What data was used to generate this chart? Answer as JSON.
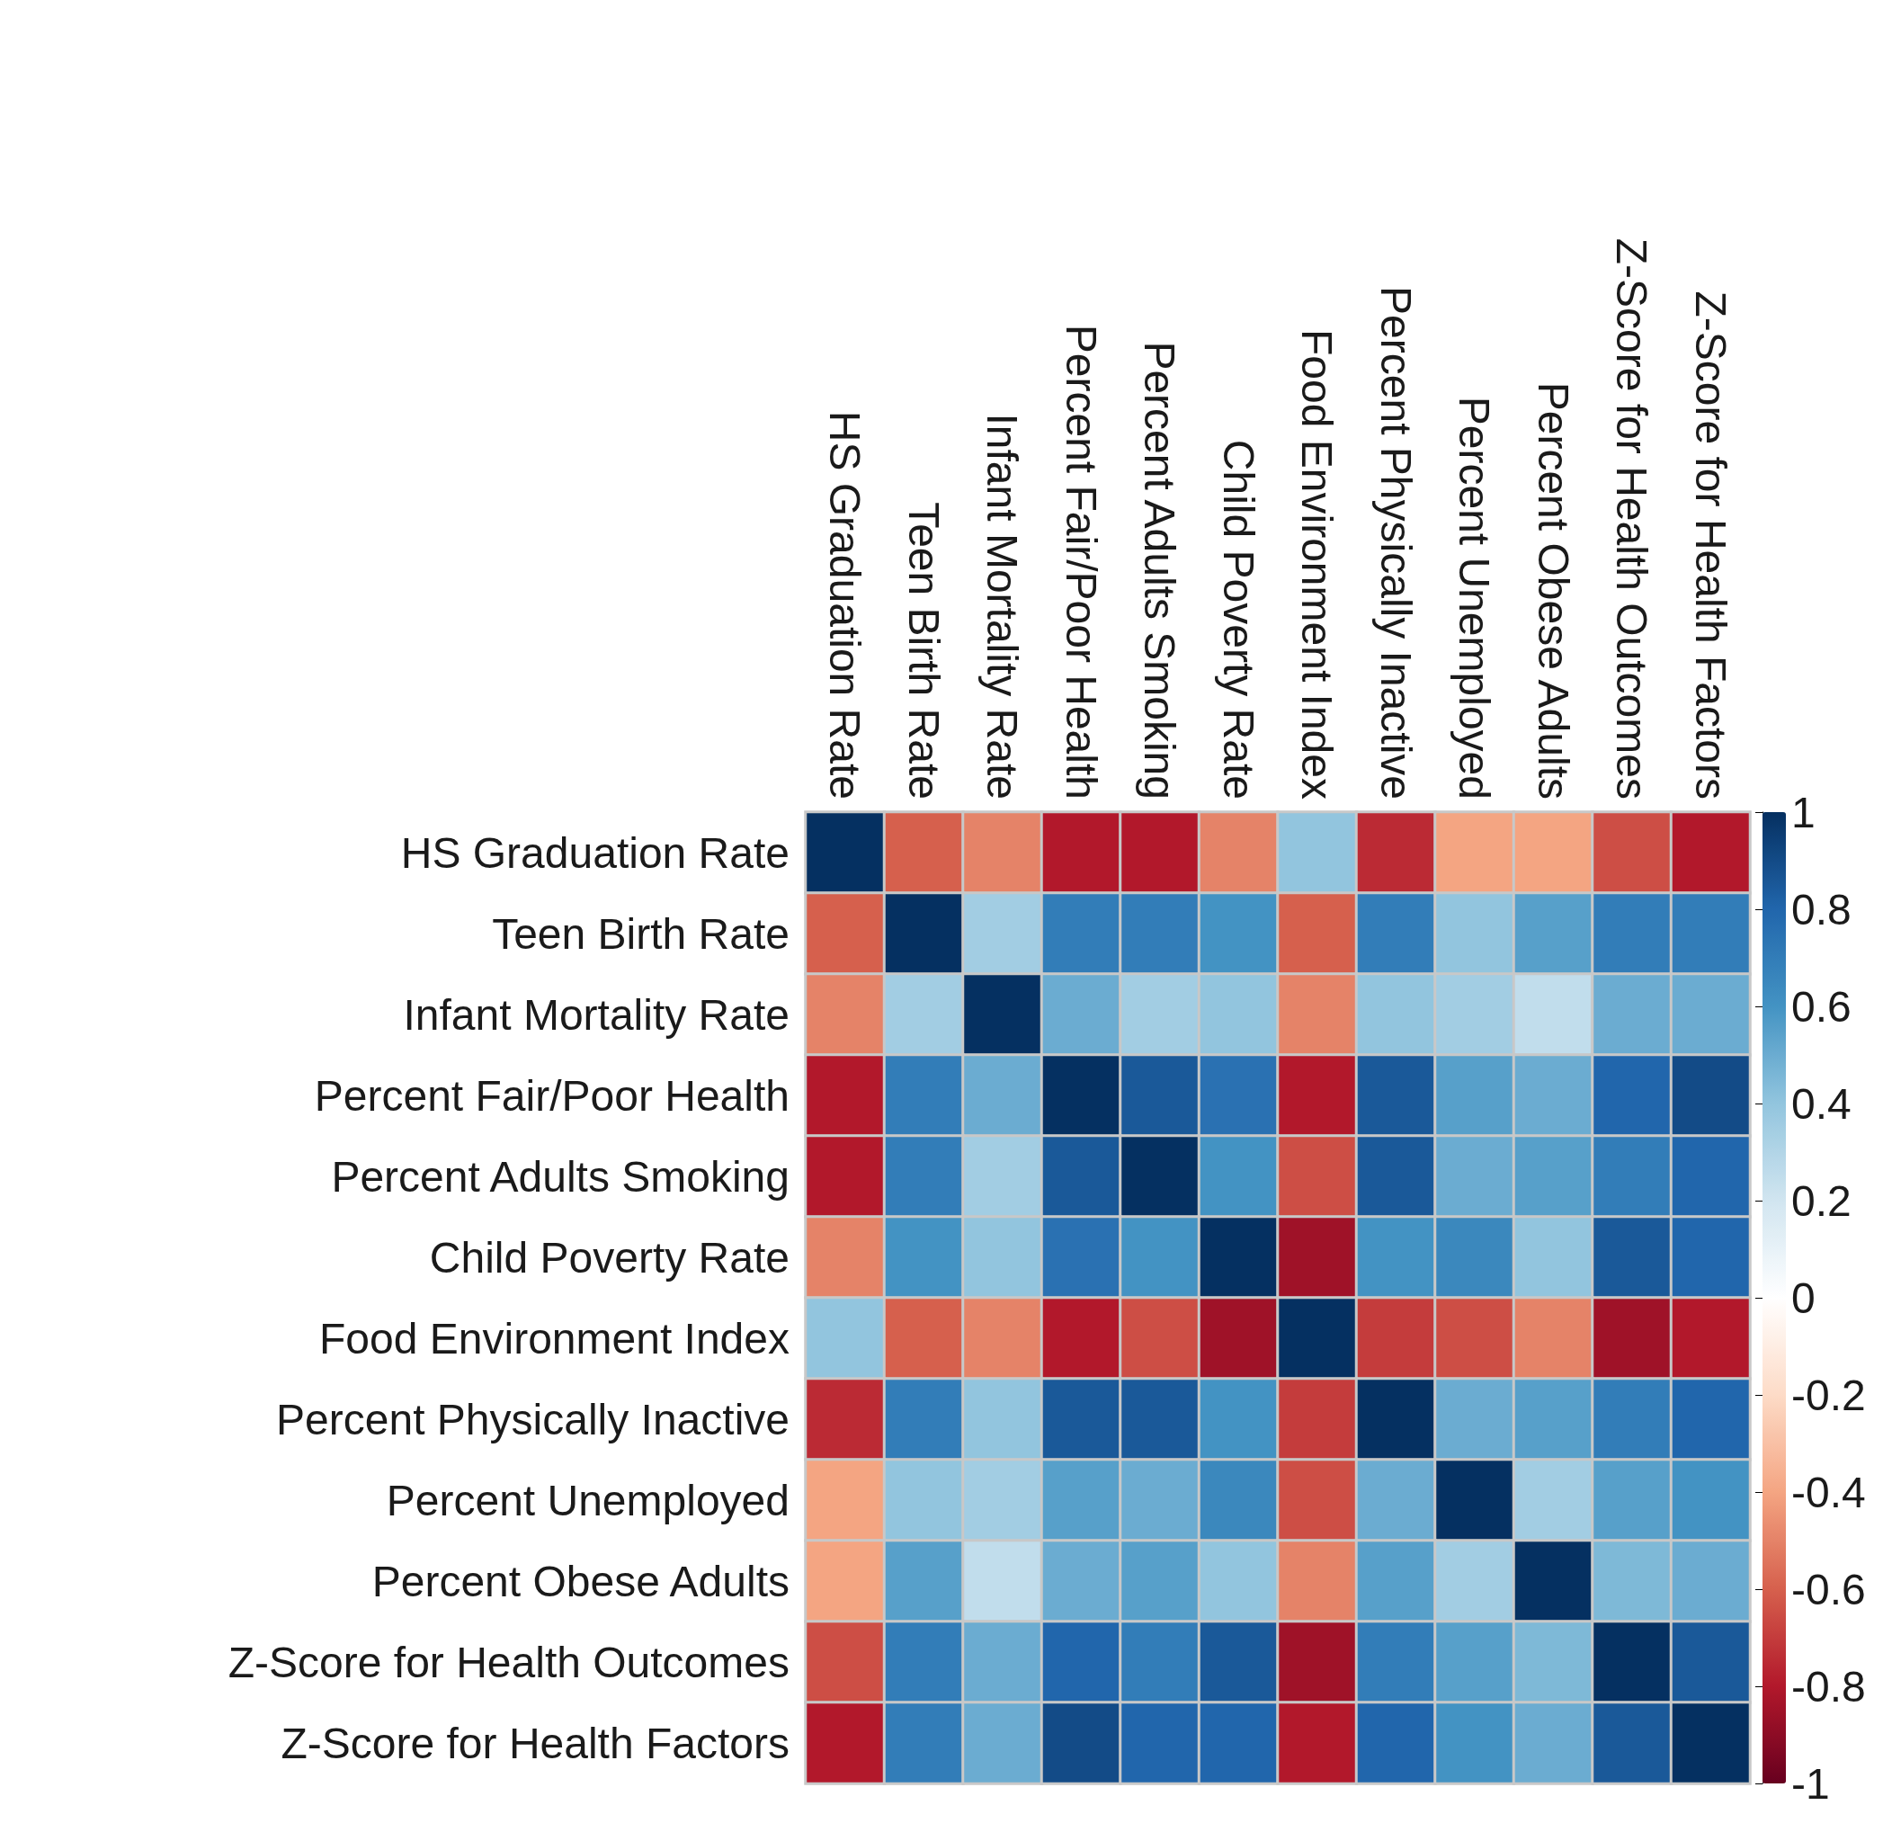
{
  "chart_data": {
    "type": "heatmap",
    "categories": [
      "HS Graduation Rate",
      "Teen Birth Rate",
      "Infant Mortality Rate",
      "Percent Fair/Poor Health",
      "Percent Adults Smoking",
      "Child Poverty Rate",
      "Food Environment Index",
      "Percent Physically Inactive",
      "Percent Unemployed",
      "Percent Obese Adults",
      "Z-Score for Health Outcomes",
      "Z-Score for Health Factors"
    ],
    "y_categories": [
      "HS Graduation Rate",
      "Teen Birth Rate",
      "Infant Mortality Rate",
      "Percent Fair/Poor Health",
      "Percent Adults Smoking",
      "Child Poverty Rate",
      "Food Environment Index",
      "Percent Physically Inactive",
      "Percent Unemployed",
      "Percent Obese Adults",
      "Z-Score for Health Outcomes",
      "Z-Score for Health Factors"
    ],
    "cells": [
      [
        1,
        -0.6,
        -0.5,
        -0.8,
        -0.8,
        -0.5,
        0.4,
        -0.75,
        -0.4,
        -0.4,
        -0.65,
        -0.8
      ],
      [
        -0.6,
        1,
        0.35,
        0.7,
        0.7,
        0.6,
        -0.6,
        0.7,
        0.4,
        0.55,
        0.7,
        0.7
      ],
      [
        -0.5,
        0.35,
        1,
        0.5,
        0.35,
        0.4,
        -0.5,
        0.4,
        0.35,
        0.25,
        0.5,
        0.5
      ],
      [
        -0.8,
        0.7,
        0.5,
        1,
        0.85,
        0.75,
        -0.8,
        0.85,
        0.55,
        0.5,
        0.8,
        0.9
      ],
      [
        -0.8,
        0.7,
        0.35,
        0.85,
        1,
        0.6,
        -0.65,
        0.85,
        0.5,
        0.55,
        0.7,
        0.8
      ],
      [
        -0.5,
        0.6,
        0.4,
        0.75,
        0.6,
        1,
        -0.85,
        0.6,
        0.65,
        0.4,
        0.85,
        0.8
      ],
      [
        0.4,
        -0.6,
        -0.5,
        -0.8,
        -0.65,
        -0.85,
        1,
        -0.7,
        -0.65,
        -0.5,
        -0.85,
        -0.8
      ],
      [
        -0.75,
        0.7,
        0.4,
        0.85,
        0.85,
        0.6,
        -0.7,
        1,
        0.5,
        0.55,
        0.7,
        0.8
      ],
      [
        -0.4,
        0.4,
        0.35,
        0.55,
        0.5,
        0.65,
        -0.65,
        0.5,
        1,
        0.35,
        0.55,
        0.6
      ],
      [
        -0.4,
        0.55,
        0.25,
        0.5,
        0.55,
        0.4,
        -0.5,
        0.55,
        0.35,
        1,
        0.45,
        0.5
      ],
      [
        -0.65,
        0.7,
        0.5,
        0.8,
        0.7,
        0.85,
        -0.85,
        0.7,
        0.55,
        0.45,
        1,
        0.85
      ],
      [
        -0.8,
        0.7,
        0.5,
        0.9,
        0.8,
        0.8,
        -0.8,
        0.8,
        0.6,
        0.5,
        0.85,
        1
      ]
    ],
    "clim": [
      -1,
      1
    ],
    "cticks": [
      1,
      0.8,
      0.6,
      0.4,
      0.2,
      0,
      -0.2,
      -0.4,
      -0.6,
      -0.8,
      -1
    ]
  }
}
